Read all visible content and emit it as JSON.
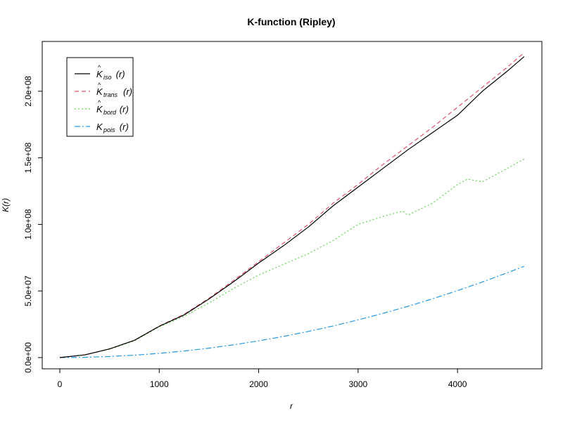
{
  "chart_data": {
    "type": "line",
    "title": "K-function (Ripley)",
    "xlabel": "r",
    "ylabel": "K(r)",
    "xlim": [
      0,
      4700
    ],
    "ylim": [
      0,
      230000000
    ],
    "x_ticks": [
      0,
      1000,
      2000,
      3000,
      4000
    ],
    "x_tick_labels": [
      "0",
      "1000",
      "2000",
      "3000",
      "4000"
    ],
    "y_ticks": [
      0,
      50000000,
      100000000,
      150000000,
      200000000
    ],
    "y_tick_labels": [
      "0.0e+00",
      "5.0e+07",
      "1.0e+08",
      "1.5e+08",
      "2.0e+08"
    ],
    "grid": false,
    "legend_position": "top-left",
    "series": [
      {
        "key": "iso",
        "name_base": "K",
        "name_hat": true,
        "name_sub": "iso",
        "name_arg": "(r)",
        "color": "#000000",
        "dash": "",
        "x": [
          0,
          250,
          500,
          750,
          1000,
          1250,
          1500,
          1750,
          2000,
          2250,
          2500,
          2750,
          3000,
          3250,
          3500,
          3750,
          4000,
          4250,
          4500,
          4670
        ],
        "y": [
          0,
          2000000,
          6500000,
          13000000,
          23500000,
          32000000,
          44000000,
          57000000,
          71000000,
          84000000,
          98000000,
          114000000,
          128000000,
          142000000,
          156000000,
          169000000,
          182000000,
          200000000,
          215000000,
          226000000
        ]
      },
      {
        "key": "trans",
        "name_base": "K",
        "name_hat": true,
        "name_sub": "trans",
        "name_arg": "(r)",
        "color": "#DF536B",
        "dash": "6,4",
        "x": [
          0,
          250,
          500,
          750,
          1000,
          1250,
          1500,
          1750,
          2000,
          2250,
          2500,
          2750,
          3000,
          3250,
          3500,
          3750,
          4000,
          4250,
          4500,
          4670
        ],
        "y": [
          0,
          2000000,
          6500000,
          13000000,
          23700000,
          32500000,
          44500000,
          58000000,
          72000000,
          86000000,
          100000000,
          116000000,
          130000000,
          145000000,
          159000000,
          173000000,
          188000000,
          203000000,
          218000000,
          229000000
        ]
      },
      {
        "key": "bord",
        "name_base": "K",
        "name_hat": true,
        "name_sub": "bord",
        "name_arg": "(r)",
        "color": "#61D04F",
        "dash": "2,3",
        "x": [
          0,
          250,
          500,
          750,
          1000,
          1250,
          1500,
          1750,
          2000,
          2250,
          2500,
          2750,
          3000,
          3250,
          3450,
          3500,
          3750,
          4000,
          4100,
          4250,
          4500,
          4670
        ],
        "y": [
          0,
          2000000,
          6200000,
          12500000,
          23000000,
          31000000,
          41000000,
          52000000,
          62000000,
          70000000,
          78000000,
          88000000,
          100000000,
          106000000,
          110000000,
          107000000,
          116000000,
          130000000,
          134000000,
          132000000,
          142000000,
          149000000
        ]
      },
      {
        "key": "pois",
        "name_base": "K",
        "name_hat": false,
        "name_sub": "pois",
        "name_arg": "(r)",
        "color": "#2297E6",
        "dash": "8,3,2,3",
        "x": [
          0,
          250,
          500,
          750,
          1000,
          1250,
          1500,
          1750,
          2000,
          2250,
          2500,
          2750,
          3000,
          3250,
          3500,
          3750,
          4000,
          4250,
          4500,
          4670
        ],
        "y": [
          0,
          196000,
          785000,
          1770000,
          3140000,
          4910000,
          7070000,
          9620000,
          12570000,
          15900000,
          19630000,
          23760000,
          28270000,
          33180000,
          38480000,
          44180000,
          50270000,
          56750000,
          63620000,
          68520000
        ]
      }
    ]
  }
}
